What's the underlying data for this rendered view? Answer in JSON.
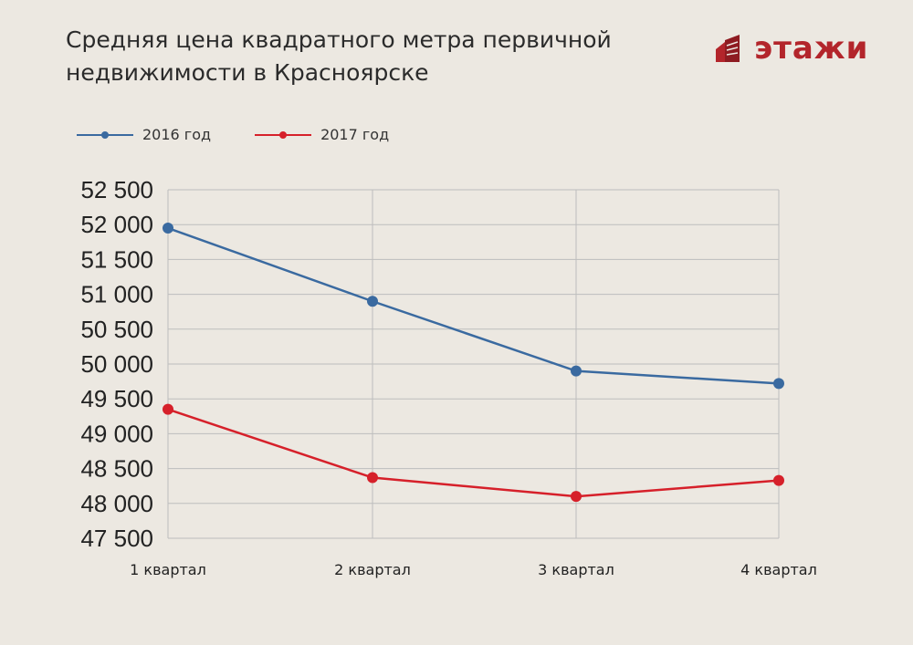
{
  "title_line1": "Средняя цена квадратного метра первичной",
  "title_line2": "недвижимости в Красноярске",
  "logo_text": "этажи",
  "colors": {
    "series_2016": "#3a6aa0",
    "series_2017": "#d6202a",
    "logo": "#b3252b",
    "grid": "#bdbdbd"
  },
  "chart_data": {
    "type": "line",
    "title": "Средняя цена квадратного метра первичной недвижимости в Красноярске",
    "categories": [
      "1 квартал",
      "2 квартал",
      "3 квартал",
      "4 квартал"
    ],
    "series": [
      {
        "name": "2016 год",
        "values": [
          51950,
          50900,
          49900,
          49720
        ]
      },
      {
        "name": "2017 год",
        "values": [
          49350,
          48370,
          48100,
          48330
        ]
      }
    ],
    "y_ticks": [
      52500,
      52000,
      51500,
      51000,
      50500,
      50000,
      49500,
      49000,
      48500,
      48000,
      47500
    ],
    "y_tick_labels": [
      "52 500",
      "52 000",
      "51 500",
      "51 000",
      "50 500",
      "50 000",
      "49 500",
      "49 000",
      "48 500",
      "48 000",
      "47 500"
    ],
    "ylim": [
      47500,
      52500
    ],
    "grid": true,
    "legend": "top-left"
  }
}
